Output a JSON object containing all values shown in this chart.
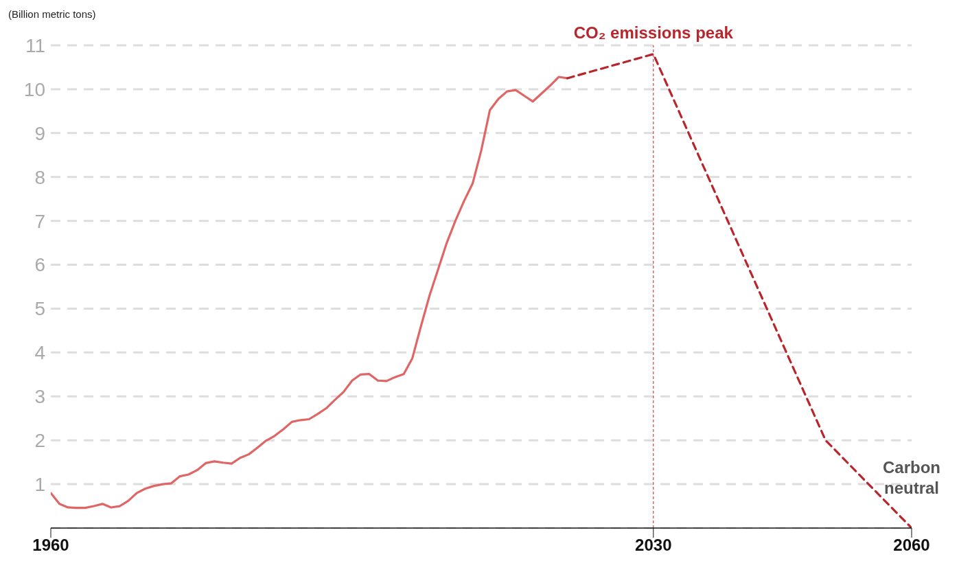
{
  "chart_data": {
    "type": "line",
    "ylabel": "(Billion metric tons)",
    "xlim": [
      1960,
      2060
    ],
    "xticks": [
      1960,
      2030,
      2060
    ],
    "ylim": [
      0,
      11
    ],
    "yticks": [
      1,
      2,
      3,
      4,
      5,
      6,
      7,
      8,
      9,
      10,
      11
    ],
    "grid": "y",
    "marker": "none",
    "series": [
      {
        "color": "#e06666",
        "line_style": "solid",
        "x": [
          1960,
          1961,
          1962,
          1963,
          1964,
          1965,
          1966,
          1967,
          1968,
          1969,
          1970,
          1971,
          1972,
          1973,
          1974,
          1975,
          1976,
          1977,
          1978,
          1979,
          1980,
          1981,
          1982,
          1983,
          1984,
          1985,
          1986,
          1987,
          1988,
          1989,
          1990,
          1991,
          1992,
          1993,
          1994,
          1995,
          1996,
          1997,
          1998,
          1999,
          2000,
          2001,
          2002,
          2003,
          2004,
          2005,
          2006,
          2007,
          2008,
          2009,
          2010,
          2011,
          2012,
          2013,
          2014,
          2015,
          2016,
          2017,
          2018,
          2019,
          2020
        ],
        "values": [
          0.8,
          0.55,
          0.47,
          0.46,
          0.46,
          0.5,
          0.55,
          0.47,
          0.5,
          0.62,
          0.8,
          0.9,
          0.96,
          1.0,
          1.02,
          1.18,
          1.22,
          1.32,
          1.48,
          1.52,
          1.49,
          1.47,
          1.6,
          1.68,
          1.83,
          1.99,
          2.1,
          2.25,
          2.42,
          2.46,
          2.48,
          2.6,
          2.73,
          2.92,
          3.1,
          3.36,
          3.5,
          3.51,
          3.36,
          3.35,
          3.44,
          3.51,
          3.87,
          4.6,
          5.3,
          5.9,
          6.5,
          7.0,
          7.45,
          7.85,
          8.6,
          9.52,
          9.78,
          9.95,
          9.98,
          9.85,
          9.72,
          9.9,
          10.08,
          10.28,
          10.25
        ]
      },
      {
        "color": "#b8262c",
        "line_style": "dashed",
        "x": [
          2020,
          2030,
          2050,
          2060
        ],
        "values": [
          10.25,
          10.8,
          2.0,
          0
        ]
      }
    ],
    "ref_lines": [
      {
        "axis": "x",
        "value": 2030,
        "label": "CO₂ emissions peak",
        "color": "#b8262c",
        "line_style": "dashed"
      }
    ],
    "annotations": [
      {
        "text": "Carbon neutral",
        "x": 2060,
        "y": 0
      }
    ]
  }
}
